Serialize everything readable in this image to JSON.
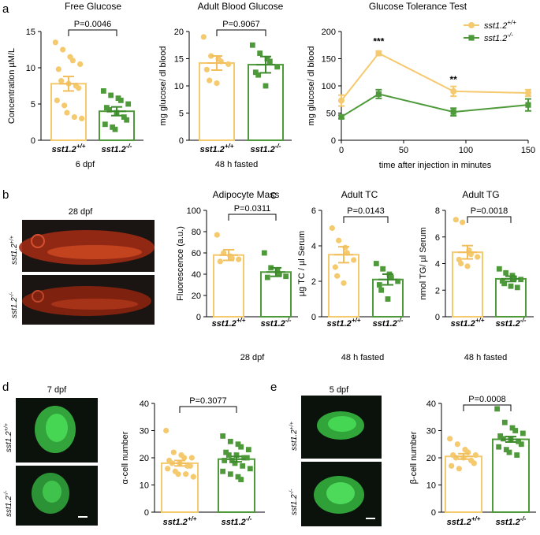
{
  "panel_labels": [
    "a",
    "b",
    "c",
    "d",
    "e"
  ],
  "colors": {
    "wt": "#F5C96E",
    "wt_dark": "#F2BE5C",
    "ko": "#4E9A3A",
    "ko_dark": "#3D8A2C",
    "axis": "#000000",
    "photo_bg": "#1A1512",
    "photo_fish": "#B8321A",
    "islet_bg": "#0B120B",
    "islet": "#3BD44A"
  },
  "images": {
    "b_title": "28 dpf",
    "b_wt_label": "sst1.2",
    "b_wt_sup": "+/+",
    "b_ko_label": "sst1.2",
    "b_ko_sup": "-/-",
    "d_title": "7 dpf",
    "d_wt_label": "sst1.2",
    "d_wt_sup": "+/+",
    "d_ko_label": "sst1.2",
    "d_ko_sup": "-/-",
    "e_title": "5 dpf",
    "e_wt_label": "sst1.2",
    "e_wt_sup": "+/+",
    "e_ko_label": "sst1.2",
    "e_ko_sup": "-/-"
  },
  "chart_data": [
    {
      "id": "free-glucose",
      "type": "bar",
      "title": "Free Glucose",
      "ylabel": "Concentration µM/L",
      "xlabel": "6 dpf",
      "categories": [
        {
          "name": "sst1.2",
          "sup": "+/+"
        },
        {
          "name": "sst1.2",
          "sup": "-/-"
        }
      ],
      "ylim": [
        0,
        15
      ],
      "yticks": [
        0,
        5,
        10,
        15
      ],
      "means": [
        7.8,
        4.0
      ],
      "sems": [
        1.0,
        0.6
      ],
      "points": [
        [
          13.5,
          12.5,
          11.5,
          11.0,
          10.5,
          9.8,
          8.2,
          7.8,
          7.5,
          7.2,
          5.5,
          4.8,
          3.8,
          3.2,
          3.0
        ],
        [
          6.8,
          6.2,
          5.8,
          5.5,
          5.0,
          4.5,
          4.2,
          3.8,
          3.2,
          2.8,
          2.2,
          1.8,
          1.5
        ]
      ],
      "significance": "P=0.0046"
    },
    {
      "id": "adult-blood-glucose",
      "type": "bar",
      "title": "Adult Blood Glucose",
      "ylabel": "mg glucose/ dl blood",
      "xlabel": "48 h fasted",
      "categories": [
        {
          "name": "sst1.2",
          "sup": "+/+"
        },
        {
          "name": "sst1.2",
          "sup": "-/-"
        }
      ],
      "ylim": [
        0,
        20
      ],
      "yticks": [
        0,
        5,
        10,
        15,
        20
      ],
      "means": [
        14.2,
        13.9
      ],
      "sems": [
        1.3,
        1.5
      ],
      "points": [
        [
          19.0,
          15.5,
          15.0,
          14.5,
          14.0,
          13.0,
          11.0,
          10.5
        ],
        [
          17.5,
          16.0,
          15.0,
          14.5,
          13.5,
          12.5,
          12.0,
          10.0
        ]
      ],
      "significance": "P=0.9067"
    },
    {
      "id": "glucose-tolerance-test",
      "type": "line",
      "title": "Glucose Tolerance Test",
      "ylabel": "mg glucose/ dl blood",
      "xlabel": "time after injection in minutes",
      "xlim": [
        0,
        150
      ],
      "xticks": [
        0,
        50,
        100,
        150
      ],
      "ylim": [
        0,
        200
      ],
      "yticks": [
        0,
        50,
        100,
        150,
        200
      ],
      "series": [
        {
          "name": "sst1.2",
          "sup": "+/+",
          "x": [
            0,
            30,
            90,
            150
          ],
          "y": [
            73,
            160,
            90,
            87
          ],
          "err": [
            10,
            4,
            9,
            6
          ]
        },
        {
          "name": "sst1.2",
          "sup": "-/-",
          "x": [
            0,
            30,
            90,
            150
          ],
          "y": [
            43,
            85,
            52,
            65
          ],
          "err": [
            3,
            8,
            7,
            11
          ]
        }
      ],
      "annotations": [
        {
          "x": 30,
          "text": "***",
          "y": 176
        },
        {
          "x": 90,
          "text": "**",
          "y": 106
        }
      ],
      "legend": "top-right"
    },
    {
      "id": "adipocyte-mass",
      "type": "bar",
      "title": "Adipocyte Mass",
      "ylabel": "Fluorescence  (a.u.)",
      "xlabel": "28 dpf",
      "categories": [
        {
          "name": "sst1.2",
          "sup": "+/+"
        },
        {
          "name": "sst1.2",
          "sup": "-/-"
        }
      ],
      "ylim": [
        0,
        100
      ],
      "yticks": [
        0,
        20,
        40,
        60,
        80,
        100
      ],
      "means": [
        58,
        42
      ],
      "sems": [
        5,
        4
      ],
      "points": [
        [
          77,
          60,
          57,
          55,
          54,
          52
        ],
        [
          60,
          46,
          43,
          40,
          38,
          37
        ]
      ],
      "significance": "P=0.0311"
    },
    {
      "id": "adult-tc",
      "type": "bar",
      "title": "Adult TC",
      "ylabel": "µg TC / µl Serum",
      "xlabel": "48 h fasted",
      "categories": [
        {
          "name": "sst1.2",
          "sup": "+/+"
        },
        {
          "name": "sst1.2",
          "sup": "-/-"
        }
      ],
      "ylim": [
        0,
        6
      ],
      "yticks": [
        0,
        2,
        4,
        6
      ],
      "means": [
        3.5,
        2.1
      ],
      "sems": [
        0.45,
        0.3
      ],
      "points": [
        [
          5.0,
          4.3,
          3.9,
          3.6,
          3.2,
          2.8,
          2.3,
          1.9
        ],
        [
          3.0,
          2.7,
          2.4,
          2.2,
          2.0,
          1.8,
          1.5,
          1.0
        ]
      ],
      "significance": "P=0.0143"
    },
    {
      "id": "adult-tg",
      "type": "bar",
      "title": "Adult TG",
      "ylabel": "nmol TG/ µl Serum",
      "xlabel": "48 h fasted",
      "categories": [
        {
          "name": "sst1.2",
          "sup": "+/+"
        },
        {
          "name": "sst1.2",
          "sup": "-/-"
        }
      ],
      "ylim": [
        0,
        8
      ],
      "yticks": [
        0,
        2,
        4,
        6,
        8
      ],
      "means": [
        4.85,
        2.85
      ],
      "sems": [
        0.5,
        0.2
      ],
      "points": [
        [
          7.3,
          7.1,
          5.0,
          4.7,
          4.5,
          4.3,
          4.0,
          3.8
        ],
        [
          3.6,
          3.3,
          3.1,
          2.9,
          2.8,
          2.7,
          2.5,
          2.3,
          2.2
        ]
      ],
      "significance": "P=0.0018"
    },
    {
      "id": "alpha-cell-number",
      "type": "bar",
      "title": "",
      "ylabel": "α-cell number",
      "xlabel": "",
      "categories": [
        {
          "name": "sst1.2",
          "sup": "+/+"
        },
        {
          "name": "sst1.2",
          "sup": "-/-"
        }
      ],
      "ylim": [
        0,
        40
      ],
      "yticks": [
        0,
        10,
        20,
        30,
        40
      ],
      "means": [
        18,
        19.5
      ],
      "sems": [
        1.0,
        1.0
      ],
      "points": [
        [
          30,
          22,
          21,
          20,
          20,
          19,
          18,
          18,
          17,
          17,
          16,
          15,
          14,
          14,
          13
        ],
        [
          28,
          26,
          25,
          24,
          23,
          22,
          21,
          21,
          20,
          20,
          19,
          19,
          18,
          17,
          16,
          15,
          14,
          13,
          12
        ]
      ],
      "significance": "P=0.3077"
    },
    {
      "id": "beta-cell-number",
      "type": "bar",
      "title": "",
      "ylabel": "β-cell number",
      "xlabel": "",
      "categories": [
        {
          "name": "sst1.2",
          "sup": "+/+"
        },
        {
          "name": "sst1.2",
          "sup": "-/-"
        }
      ],
      "ylim": [
        0,
        40
      ],
      "yticks": [
        0,
        10,
        20,
        30,
        40
      ],
      "means": [
        20.5,
        26.8
      ],
      "sems": [
        1.0,
        1.0
      ],
      "points": [
        [
          27,
          25,
          23,
          22,
          21,
          21,
          20,
          20,
          19,
          18,
          17,
          16
        ],
        [
          38,
          33,
          31,
          30,
          29,
          28,
          27,
          27,
          26,
          25,
          24,
          23,
          22,
          21
        ]
      ],
      "significance": "P=0.0008"
    }
  ]
}
